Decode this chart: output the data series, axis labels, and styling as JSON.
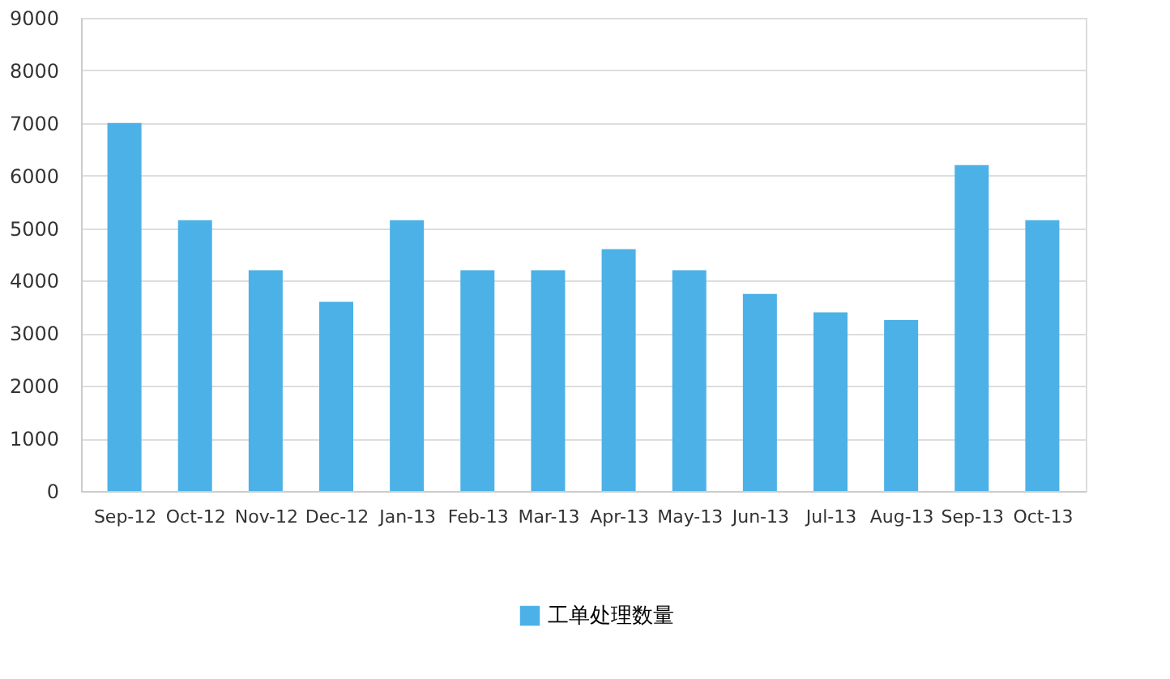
{
  "chart_data": {
    "type": "bar",
    "categories": [
      "Sep-12",
      "Oct-12",
      "Nov-12",
      "Dec-12",
      "Jan-13",
      "Feb-13",
      "Mar-13",
      "Apr-13",
      "May-13",
      "Jun-13",
      "Jul-13",
      "Aug-13",
      "Sep-13",
      "Oct-13"
    ],
    "series": [
      {
        "name": "工单处理数量",
        "color": "#4cb1e6",
        "values": [
          7000,
          5150,
          4200,
          3600,
          5150,
          4200,
          4200,
          4600,
          4200,
          3750,
          3400,
          3250,
          6200,
          5150
        ]
      }
    ],
    "ylim": [
      0,
      9000
    ],
    "yticks": [
      0,
      1000,
      2000,
      3000,
      4000,
      5000,
      6000,
      7000,
      8000,
      9000
    ],
    "grid": "y",
    "legend": "bottom"
  }
}
